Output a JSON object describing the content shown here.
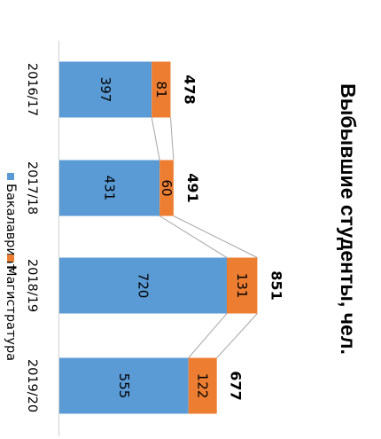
{
  "chart_data": {
    "type": "bar",
    "stacked": true,
    "orientation": "vertical",
    "title": "Выбывшие студенты, чел.",
    "categories": [
      "2016/17",
      "2017/18",
      "2018/19",
      "2019/20"
    ],
    "series": [
      {
        "name": "Бакалавриат",
        "values": [
          397,
          431,
          720,
          555
        ],
        "color": "#5b9bd5"
      },
      {
        "name": "Магистратура",
        "values": [
          81,
          60,
          131,
          122
        ],
        "color": "#ed7d31"
      }
    ],
    "totals": [
      478,
      491,
      851,
      677
    ],
    "ylim": [
      0,
      1000
    ],
    "grid": false,
    "legend_position": "bottom",
    "connector_lines": true
  }
}
